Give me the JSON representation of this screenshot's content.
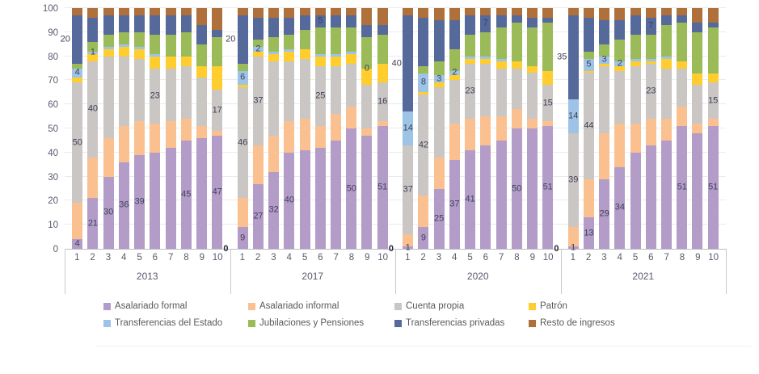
{
  "chart_data": {
    "type": "bar",
    "subtype": "percent-stacked-column",
    "ylim": [
      0,
      100
    ],
    "grid": true,
    "legend_position": "bottom",
    "yticks": [
      "0",
      "10",
      "20",
      "30",
      "40",
      "50",
      "60",
      "70",
      "80",
      "90",
      "100"
    ],
    "series": [
      {
        "key": "formal",
        "name": "Asalariado formal",
        "color": "#B39CC8"
      },
      {
        "key": "informal",
        "name": "Asalariado informal",
        "color": "#FAC090"
      },
      {
        "key": "cuenta",
        "name": "Cuenta propia",
        "color": "#C9C6C4"
      },
      {
        "key": "patron",
        "name": "Patrón",
        "color": "#FFCD2D"
      },
      {
        "key": "estado",
        "name": "Transferencias del Estado",
        "color": "#9DC3E6"
      },
      {
        "key": "jubilaciones",
        "name": "Jubilaciones y Pensiones",
        "color": "#9BBB59"
      },
      {
        "key": "privadas",
        "name": "Transferencias privadas",
        "color": "#55699A"
      },
      {
        "key": "resto",
        "name": "Resto de ingresos",
        "color": "#B0703C"
      }
    ],
    "stack_order": [
      "formal",
      "informal",
      "cuenta",
      "patron",
      "estado",
      "jubilaciones",
      "privadas",
      "resto"
    ],
    "groups": [
      {
        "year": "2013",
        "categories": [
          "1",
          "2",
          "3",
          "4",
          "5",
          "6",
          "7",
          "8",
          "9",
          "10"
        ],
        "values": {
          "formal": [
            4,
            21,
            30,
            36,
            39,
            40,
            42,
            45,
            46,
            47
          ],
          "informal": [
            15,
            17,
            16,
            15,
            14,
            12,
            11,
            9,
            5,
            2
          ],
          "cuenta": [
            50,
            40,
            34,
            29,
            26,
            23,
            22,
            22,
            20,
            17
          ],
          "patron": [
            2,
            3,
            3,
            4,
            4,
            5,
            5,
            4,
            5,
            10
          ],
          "estado": [
            4,
            1,
            1,
            1,
            1,
            1,
            0,
            0,
            0,
            0
          ],
          "jubilaciones": [
            2,
            4,
            5,
            5,
            6,
            8,
            9,
            10,
            9,
            12
          ],
          "privadas": [
            20,
            10,
            8,
            7,
            7,
            8,
            8,
            7,
            8,
            3
          ],
          "resto": [
            3,
            4,
            3,
            3,
            3,
            3,
            3,
            3,
            7,
            9
          ]
        },
        "labels": [
          {
            "bar": 1,
            "series": "formal",
            "text": "4"
          },
          {
            "bar": 1,
            "series": "cuenta",
            "text": "50"
          },
          {
            "bar": 1,
            "series": "estado",
            "text": "4"
          },
          {
            "bar": 1,
            "series": "privadas",
            "text": "20",
            "dx": -15
          },
          {
            "bar": 2,
            "series": "formal",
            "text": "21"
          },
          {
            "bar": 2,
            "series": "cuenta",
            "text": "40"
          },
          {
            "bar": 2,
            "series": "estado",
            "text": "1"
          },
          {
            "bar": 3,
            "series": "formal",
            "text": "30"
          },
          {
            "bar": 4,
            "series": "formal",
            "text": "36"
          },
          {
            "bar": 5,
            "series": "formal",
            "text": "39"
          },
          {
            "bar": 6,
            "series": "cuenta",
            "text": "23"
          },
          {
            "bar": 8,
            "series": "formal",
            "text": "45"
          },
          {
            "bar": 10,
            "series": "formal",
            "text": "47"
          },
          {
            "bar": 10,
            "series": "cuenta",
            "text": "17"
          }
        ]
      },
      {
        "year": "2017",
        "categories": [
          "1",
          "2",
          "3",
          "4",
          "5",
          "6",
          "7",
          "8",
          "9",
          "10"
        ],
        "values": {
          "formal": [
            9,
            27,
            32,
            40,
            41,
            42,
            45,
            50,
            47,
            51
          ],
          "informal": [
            12,
            16,
            15,
            13,
            13,
            9,
            11,
            9,
            3,
            2
          ],
          "cuenta": [
            46,
            37,
            31,
            25,
            25,
            25,
            20,
            18,
            18,
            16
          ],
          "patron": [
            1,
            2,
            3,
            4,
            4,
            4,
            4,
            4,
            7,
            8
          ],
          "estado": [
            6,
            2,
            1,
            1,
            0,
            1,
            1,
            1,
            0,
            0
          ],
          "jubilaciones": [
            3,
            3,
            6,
            6,
            8,
            11,
            11,
            10,
            13,
            12
          ],
          "privadas": [
            20,
            9,
            8,
            7,
            6,
            5,
            5,
            5,
            5,
            4
          ],
          "resto": [
            3,
            4,
            4,
            4,
            3,
            3,
            3,
            3,
            7,
            7
          ]
        },
        "labels": [
          {
            "bar": 1,
            "series": "formal",
            "text": "9"
          },
          {
            "bar": 1,
            "series": "cuenta",
            "text": "46"
          },
          {
            "bar": 1,
            "series": "estado",
            "text": "6"
          },
          {
            "bar": 1,
            "series": "privadas",
            "text": "20",
            "dx": -15
          },
          {
            "bar": 2,
            "series": "formal",
            "text": "27"
          },
          {
            "bar": 2,
            "series": "cuenta",
            "text": "37"
          },
          {
            "bar": 2,
            "series": "estado",
            "text": "2"
          },
          {
            "bar": 3,
            "series": "formal",
            "text": "32"
          },
          {
            "bar": 4,
            "series": "formal",
            "text": "40"
          },
          {
            "bar": 6,
            "series": "cuenta",
            "text": "25"
          },
          {
            "bar": 6,
            "series": "privadas",
            "text": "5"
          },
          {
            "bar": 8,
            "series": "formal",
            "text": "50"
          },
          {
            "bar": 9,
            "series": "estado",
            "text": "0"
          },
          {
            "bar": 10,
            "series": "formal",
            "text": "51"
          },
          {
            "bar": 10,
            "series": "cuenta",
            "text": "16"
          }
        ]
      },
      {
        "year": "2020",
        "categories": [
          "1",
          "2",
          "3",
          "4",
          "5",
          "6",
          "7",
          "8",
          "9",
          "10"
        ],
        "values": {
          "formal": [
            1,
            9,
            25,
            37,
            41,
            43,
            45,
            50,
            50,
            51
          ],
          "informal": [
            5,
            13,
            13,
            15,
            13,
            12,
            10,
            8,
            4,
            2
          ],
          "cuenta": [
            37,
            42,
            29,
            18,
            23,
            22,
            20,
            17,
            19,
            15
          ],
          "patron": [
            0,
            1,
            2,
            2,
            2,
            2,
            3,
            3,
            3,
            6
          ],
          "estado": [
            14,
            8,
            3,
            2,
            1,
            1,
            1,
            0,
            0,
            0
          ],
          "jubilaciones": [
            0,
            3,
            6,
            9,
            9,
            10,
            13,
            16,
            16,
            20
          ],
          "privadas": [
            40,
            20,
            17,
            12,
            8,
            7,
            5,
            3,
            4,
            2
          ],
          "resto": [
            3,
            4,
            5,
            5,
            3,
            3,
            3,
            3,
            4,
            4
          ]
        },
        "labels": [
          {
            "bar": 1,
            "series": "formal",
            "text": "1"
          },
          {
            "bar": 1,
            "series": "cuenta",
            "text": "37"
          },
          {
            "bar": 1,
            "series": "estado",
            "text": "14"
          },
          {
            "bar": 1,
            "series": "privadas",
            "text": "40",
            "dx": -14
          },
          {
            "bar": 2,
            "series": "formal",
            "text": "9"
          },
          {
            "bar": 2,
            "series": "cuenta",
            "text": "42"
          },
          {
            "bar": 2,
            "series": "estado",
            "text": "8"
          },
          {
            "bar": 3,
            "series": "formal",
            "text": "25"
          },
          {
            "bar": 3,
            "series": "estado",
            "text": "3"
          },
          {
            "bar": 4,
            "series": "formal",
            "text": "37"
          },
          {
            "bar": 4,
            "series": "estado",
            "text": "2"
          },
          {
            "bar": 5,
            "series": "formal",
            "text": "41"
          },
          {
            "bar": 5,
            "series": "cuenta",
            "text": "23"
          },
          {
            "bar": 6,
            "series": "privadas",
            "text": "7"
          },
          {
            "bar": 8,
            "series": "formal",
            "text": "50"
          },
          {
            "bar": 10,
            "series": "formal",
            "text": "51"
          },
          {
            "bar": 10,
            "series": "cuenta",
            "text": "15"
          }
        ]
      },
      {
        "year": "2021",
        "categories": [
          "1",
          "2",
          "3",
          "4",
          "5",
          "6",
          "7",
          "8",
          "9",
          "10"
        ],
        "values": {
          "formal": [
            1,
            13,
            29,
            34,
            40,
            43,
            45,
            51,
            48,
            51
          ],
          "informal": [
            8,
            16,
            19,
            18,
            12,
            11,
            9,
            8,
            4,
            3
          ],
          "cuenta": [
            39,
            44,
            28,
            22,
            24,
            23,
            21,
            16,
            16,
            15
          ],
          "patron": [
            0,
            1,
            1,
            2,
            2,
            1,
            4,
            3,
            5,
            4
          ],
          "estado": [
            14,
            5,
            3,
            2,
            1,
            1,
            1,
            0,
            0,
            0
          ],
          "jubilaciones": [
            0,
            3,
            5,
            9,
            10,
            10,
            13,
            16,
            17,
            19
          ],
          "privadas": [
            35,
            14,
            10,
            8,
            8,
            7,
            4,
            3,
            4,
            2
          ],
          "resto": [
            3,
            4,
            5,
            5,
            3,
            4,
            3,
            3,
            6,
            6
          ]
        },
        "labels": [
          {
            "bar": 1,
            "series": "formal",
            "text": "1"
          },
          {
            "bar": 1,
            "series": "cuenta",
            "text": "39"
          },
          {
            "bar": 1,
            "series": "estado",
            "text": "14"
          },
          {
            "bar": 1,
            "series": "privadas",
            "text": "35",
            "dx": -14
          },
          {
            "bar": 2,
            "series": "formal",
            "text": "13"
          },
          {
            "bar": 2,
            "series": "cuenta",
            "text": "44"
          },
          {
            "bar": 2,
            "series": "estado",
            "text": "5"
          },
          {
            "bar": 3,
            "series": "formal",
            "text": "29"
          },
          {
            "bar": 3,
            "series": "estado",
            "text": "3"
          },
          {
            "bar": 4,
            "series": "formal",
            "text": "34"
          },
          {
            "bar": 4,
            "series": "estado",
            "text": "2"
          },
          {
            "bar": 6,
            "series": "cuenta",
            "text": "23"
          },
          {
            "bar": 6,
            "series": "privadas",
            "text": "7"
          },
          {
            "bar": 8,
            "series": "formal",
            "text": "51"
          },
          {
            "bar": 10,
            "series": "formal",
            "text": "51"
          },
          {
            "bar": 10,
            "series": "cuenta",
            "text": "15"
          }
        ]
      }
    ],
    "separator_zeros": [
      "0",
      "0",
      "0"
    ],
    "legend_rows": [
      [
        0,
        1,
        2,
        3
      ],
      [
        4,
        5,
        6,
        7
      ]
    ]
  }
}
